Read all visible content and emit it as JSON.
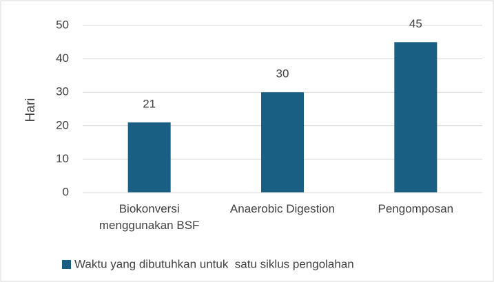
{
  "chart_data": {
    "type": "bar",
    "y_label": "Hari",
    "categories": [
      "Biokonversi menggunakan BSF",
      "Anaerobic Digestion",
      "Pengomposan"
    ],
    "series": [
      {
        "name": "Waktu yang dibutuhkan untuk  satu siklus pengolahan",
        "color": "#195e83",
        "values": [
          21,
          30,
          45
        ]
      }
    ],
    "ylim": [
      0,
      50
    ],
    "yticks": [
      0,
      10,
      20,
      30,
      40,
      50
    ],
    "grid": true,
    "legend": "bottom"
  }
}
